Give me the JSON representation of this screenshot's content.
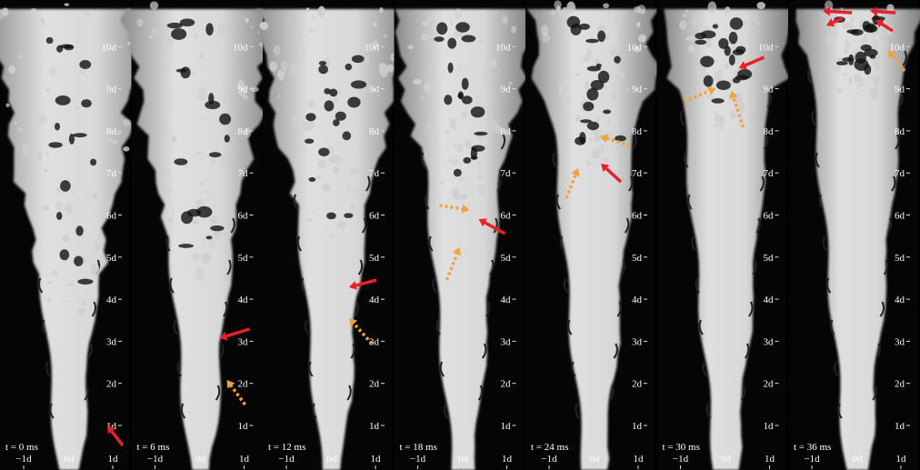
{
  "figure": {
    "panels": [
      {
        "time_label": "t = 0 ms"
      },
      {
        "time_label": "t = 6 ms"
      },
      {
        "time_label": "t = 12 ms"
      },
      {
        "time_label": "t = 18 ms"
      },
      {
        "time_label": "t = 24 ms"
      },
      {
        "time_label": "t = 30 ms"
      },
      {
        "time_label": "t = 36 ms"
      }
    ],
    "y_ticks": [
      "1d",
      "2d",
      "3d",
      "4d",
      "5d",
      "6d",
      "7d",
      "8d",
      "9d",
      "10d"
    ],
    "x_ticks": [
      "−1d",
      "0d",
      "1d"
    ],
    "colors": {
      "background": "#000000",
      "jet": "#d6d6d6",
      "solid_arrow": "#e8202a",
      "dashed_arrow": "#f2a23a"
    }
  }
}
